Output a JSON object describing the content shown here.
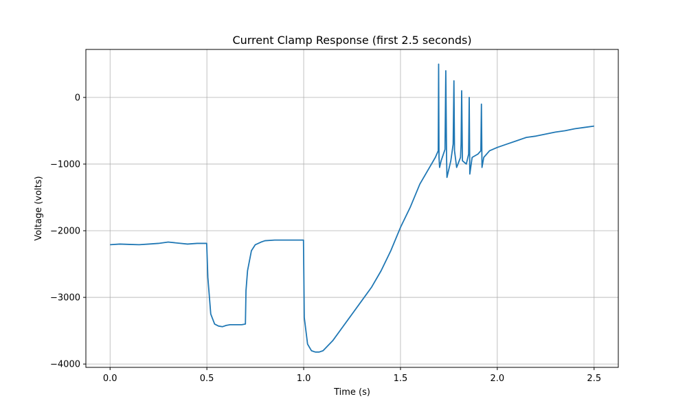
{
  "chart_data": {
    "type": "line",
    "title": "Current Clamp Response (first 2.5 seconds)",
    "xlabel": "Time (s)",
    "ylabel": "Voltage (volts)",
    "xlim": [
      -0.125,
      2.625
    ],
    "ylim": [
      -4050,
      720
    ],
    "xticks": [
      0.0,
      0.5,
      1.0,
      1.5,
      2.0,
      2.5
    ],
    "xtick_labels": [
      "0.0",
      "0.5",
      "1.0",
      "1.5",
      "2.0",
      "2.5"
    ],
    "yticks": [
      0,
      -1000,
      -2000,
      -3000,
      -4000
    ],
    "ytick_labels": [
      "0",
      "−1000",
      "−2000",
      "−3000",
      "−4000"
    ],
    "grid": true,
    "line_color": "#1f77b4",
    "series": [
      {
        "x": [
          0.0,
          0.05,
          0.1,
          0.15,
          0.2,
          0.25,
          0.3,
          0.35,
          0.4,
          0.45,
          0.499,
          0.505,
          0.52,
          0.54,
          0.56,
          0.58,
          0.6,
          0.62,
          0.65,
          0.68,
          0.699,
          0.702,
          0.71,
          0.73,
          0.75,
          0.78,
          0.8,
          0.85,
          0.9,
          0.95,
          0.999,
          1.003,
          1.02,
          1.04,
          1.06,
          1.08,
          1.1,
          1.15,
          1.2,
          1.25,
          1.3,
          1.35,
          1.4,
          1.45,
          1.5,
          1.55,
          1.6,
          1.65,
          1.68,
          1.695,
          1.697,
          1.699,
          1.702,
          1.71,
          1.73,
          1.734,
          1.738,
          1.74,
          1.76,
          1.772,
          1.776,
          1.779,
          1.79,
          1.81,
          1.813,
          1.816,
          1.82,
          1.84,
          1.852,
          1.855,
          1.858,
          1.87,
          1.9,
          1.915,
          1.918,
          1.921,
          1.93,
          1.96,
          2.0,
          2.05,
          2.1,
          2.15,
          2.2,
          2.25,
          2.3,
          2.35,
          2.4,
          2.45,
          2.5
        ],
        "y": [
          -2210,
          -2200,
          -2205,
          -2210,
          -2200,
          -2190,
          -2170,
          -2185,
          -2200,
          -2190,
          -2190,
          -2700,
          -3250,
          -3400,
          -3430,
          -3440,
          -3420,
          -3410,
          -3410,
          -3410,
          -3400,
          -2900,
          -2600,
          -2300,
          -2210,
          -2170,
          -2150,
          -2140,
          -2140,
          -2140,
          -2140,
          -3300,
          -3700,
          -3800,
          -3820,
          -3820,
          -3800,
          -3650,
          -3450,
          -3250,
          -3050,
          -2850,
          -2600,
          -2300,
          -1950,
          -1650,
          -1300,
          -1050,
          -900,
          -800,
          500,
          -900,
          -1050,
          -950,
          -780,
          400,
          -900,
          -1200,
          -950,
          -700,
          250,
          -800,
          -1050,
          -900,
          -700,
          100,
          -950,
          -1000,
          -850,
          0,
          -1150,
          -900,
          -850,
          -800,
          -100,
          -1050,
          -900,
          -800,
          -750,
          -700,
          -650,
          -600,
          -580,
          -550,
          -520,
          -500,
          -470,
          -450,
          -430
        ]
      }
    ]
  }
}
